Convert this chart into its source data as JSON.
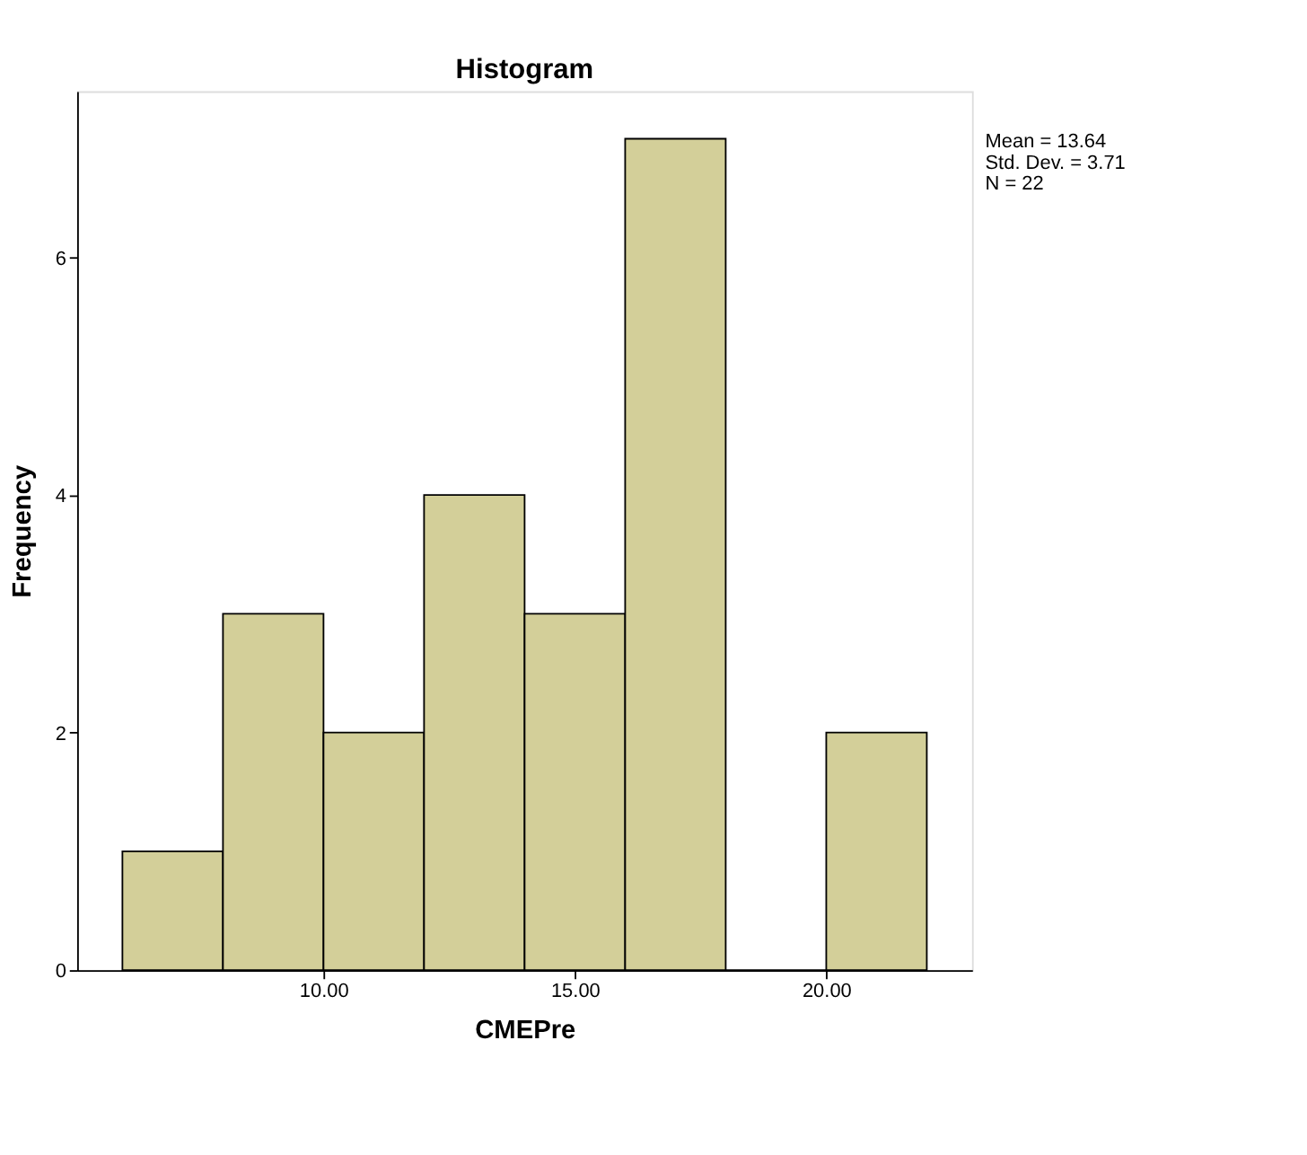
{
  "chart_data": {
    "type": "histogram",
    "title": "Histogram",
    "xlabel": "CMEPre",
    "ylabel": "Frequency",
    "bins": [
      6,
      8,
      10,
      12,
      14,
      16,
      18,
      20,
      22
    ],
    "values": [
      1,
      3,
      2,
      4,
      3,
      7,
      0,
      2
    ],
    "color": "#d3cf99",
    "xlim": [
      5.1,
      22.9
    ],
    "ylim": [
      0,
      7.4
    ],
    "xticks": [
      {
        "value": 10,
        "label": "10.00"
      },
      {
        "value": 15,
        "label": "15.00"
      },
      {
        "value": 20,
        "label": "20.00"
      }
    ],
    "yticks": [
      0,
      2,
      4,
      6
    ],
    "grid": false,
    "annotations": [
      "Mean = 13.64",
      "Std. Dev. = 3.71",
      "N = 22"
    ]
  }
}
